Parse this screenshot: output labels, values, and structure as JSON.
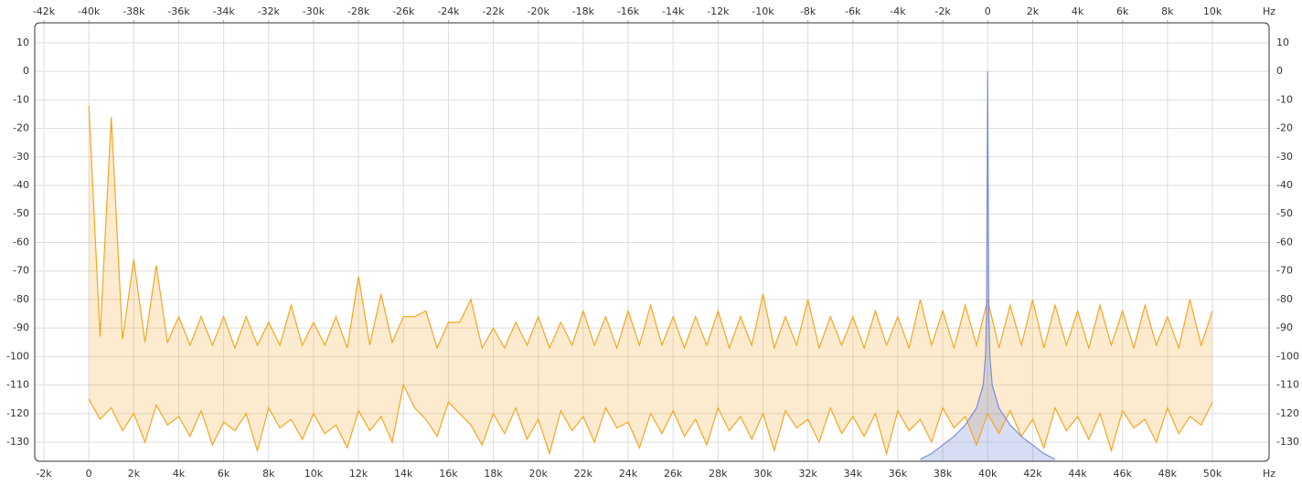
{
  "chart_data": {
    "type": "line",
    "x_label": "Hz",
    "x2_label": "Hz",
    "xlim": [
      -2407,
      52522
    ],
    "x2lim": [
      -42407,
      12522
    ],
    "ylim": [
      -136.7,
      17
    ],
    "grid": true,
    "xticks": [
      {
        "value": -2000,
        "label": "-2k"
      },
      {
        "value": 0,
        "label": "0"
      },
      {
        "value": 2000,
        "label": "2k"
      },
      {
        "value": 4000,
        "label": "4k"
      },
      {
        "value": 6000,
        "label": "6k"
      },
      {
        "value": 8000,
        "label": "8k"
      },
      {
        "value": 10000,
        "label": "10k"
      },
      {
        "value": 12000,
        "label": "12k"
      },
      {
        "value": 14000,
        "label": "14k"
      },
      {
        "value": 16000,
        "label": "16k"
      },
      {
        "value": 18000,
        "label": "18k"
      },
      {
        "value": 20000,
        "label": "20k"
      },
      {
        "value": 22000,
        "label": "22k"
      },
      {
        "value": 24000,
        "label": "24k"
      },
      {
        "value": 26000,
        "label": "26k"
      },
      {
        "value": 28000,
        "label": "28k"
      },
      {
        "value": 30000,
        "label": "30k"
      },
      {
        "value": 32000,
        "label": "32k"
      },
      {
        "value": 34000,
        "label": "34k"
      },
      {
        "value": 36000,
        "label": "36k"
      },
      {
        "value": 38000,
        "label": "38k"
      },
      {
        "value": 40000,
        "label": "40k"
      },
      {
        "value": 42000,
        "label": "42k"
      },
      {
        "value": 44000,
        "label": "44k"
      },
      {
        "value": 46000,
        "label": "46k"
      },
      {
        "value": 48000,
        "label": "48k"
      },
      {
        "value": 50000,
        "label": "50k"
      }
    ],
    "x2ticks": [
      {
        "value": -42000,
        "label": "-42k"
      },
      {
        "value": -40000,
        "label": "-40k"
      },
      {
        "value": -38000,
        "label": "-38k"
      },
      {
        "value": -36000,
        "label": "-36k"
      },
      {
        "value": -34000,
        "label": "-34k"
      },
      {
        "value": -32000,
        "label": "-32k"
      },
      {
        "value": -30000,
        "label": "-30k"
      },
      {
        "value": -28000,
        "label": "-28k"
      },
      {
        "value": -26000,
        "label": "-26k"
      },
      {
        "value": -24000,
        "label": "-24k"
      },
      {
        "value": -22000,
        "label": "-22k"
      },
      {
        "value": -20000,
        "label": "-20k"
      },
      {
        "value": -18000,
        "label": "-18k"
      },
      {
        "value": -16000,
        "label": "-16k"
      },
      {
        "value": -14000,
        "label": "-14k"
      },
      {
        "value": -12000,
        "label": "-12k"
      },
      {
        "value": -10000,
        "label": "-10k"
      },
      {
        "value": -8000,
        "label": "-8k"
      },
      {
        "value": -6000,
        "label": "-6k"
      },
      {
        "value": -4000,
        "label": "-4k"
      },
      {
        "value": -2000,
        "label": "-2k"
      },
      {
        "value": 0,
        "label": "0"
      },
      {
        "value": 2000,
        "label": "2k"
      },
      {
        "value": 4000,
        "label": "4k"
      },
      {
        "value": 6000,
        "label": "6k"
      },
      {
        "value": 8000,
        "label": "8k"
      },
      {
        "value": 10000,
        "label": "10k"
      }
    ],
    "yticks": [
      10,
      0,
      -10,
      -20,
      -30,
      -40,
      -50,
      -60,
      -70,
      -80,
      -90,
      -100,
      -110,
      -120,
      -130
    ],
    "x": [
      0,
      500,
      1000,
      1500,
      2000,
      2500,
      3000,
      3500,
      4000,
      4500,
      5000,
      5500,
      6000,
      6500,
      7000,
      7500,
      8000,
      8500,
      9000,
      9500,
      10000,
      10500,
      11000,
      11500,
      12000,
      12500,
      13000,
      13500,
      14000,
      14500,
      15000,
      15500,
      16000,
      16500,
      17000,
      17500,
      18000,
      18500,
      19000,
      19500,
      20000,
      20500,
      21000,
      21500,
      22000,
      22500,
      23000,
      23500,
      24000,
      24500,
      25000,
      25500,
      26000,
      26500,
      27000,
      27500,
      28000,
      28500,
      29000,
      29500,
      30000,
      30500,
      31000,
      31500,
      32000,
      32500,
      33000,
      33500,
      34000,
      34500,
      35000,
      35500,
      36000,
      36500,
      37000,
      37500,
      38000,
      38500,
      39000,
      39500,
      40000,
      40500,
      41000,
      41500,
      42000,
      42500,
      43000,
      43500,
      44000,
      44500,
      45000,
      45500,
      46000,
      46500,
      47000,
      47500,
      48000,
      48500,
      49000,
      49500,
      50000
    ],
    "series": [
      {
        "color": "#f5a623",
        "values": [
          -12,
          -93,
          -16,
          -94,
          -66,
          -95,
          -68,
          -95,
          -86,
          -96,
          -86,
          -96,
          -86,
          -97,
          -86,
          -96,
          -88,
          -96,
          -82,
          -96,
          -88,
          -96,
          -86,
          -97,
          -72,
          -96,
          -78,
          -95,
          -86,
          -86,
          -84,
          -97,
          -88,
          -88,
          -80,
          -97,
          -90,
          -97,
          -88,
          -96,
          -86,
          -97,
          -88,
          -96,
          -84,
          -96,
          -86,
          -97,
          -84,
          -96,
          -82,
          -96,
          -86,
          -97,
          -86,
          -96,
          -84,
          -97,
          -86,
          -96,
          -78,
          -97,
          -86,
          -96,
          -80,
          -97,
          -86,
          -96,
          -86,
          -97,
          -84,
          -96,
          -86,
          -97,
          -80,
          -96,
          -84,
          -97,
          -82,
          -96,
          -80,
          -97,
          -82,
          -96,
          -80,
          -97,
          -82,
          -96,
          -84,
          -97,
          -82,
          -96,
          -84,
          -97,
          -82,
          -96,
          -86,
          -97,
          -80,
          -96,
          -84
        ]
      },
      {
        "color": "#f5a623",
        "values": [
          -115,
          -122,
          -118,
          -126,
          -120,
          -130,
          -117,
          -124,
          -121,
          -128,
          -119,
          -131,
          -123,
          -126,
          -120,
          -133,
          -118,
          -125,
          -122,
          -129,
          -120,
          -127,
          -124,
          -132,
          -119,
          -126,
          -121,
          -130,
          -110,
          -118,
          -122,
          -128,
          -116,
          -120,
          -124,
          -131,
          -120,
          -127,
          -118,
          -129,
          -122,
          -134,
          -119,
          -126,
          -121,
          -130,
          -118,
          -125,
          -123,
          -132,
          -120,
          -127,
          -119,
          -128,
          -122,
          -131,
          -118,
          -126,
          -121,
          -129,
          -120,
          -133,
          -119,
          -125,
          -122,
          -130,
          -118,
          -127,
          -121,
          -128,
          -120,
          -134,
          -119,
          -126,
          -122,
          -130,
          -118,
          -125,
          -121,
          -131,
          -120,
          -127,
          -119,
          -128,
          -122,
          -132,
          -118,
          -126,
          -121,
          -129,
          -120,
          -133,
          -119,
          -125,
          -122,
          -130,
          -118,
          -127,
          -121,
          -124,
          -116
        ]
      },
      {
        "color": "#7b8fd8",
        "x": [
          37000,
          37500,
          38000,
          38500,
          39000,
          39500,
          39800,
          39900,
          39950,
          40000,
          40050,
          40100,
          40200,
          40500,
          41000,
          41500,
          42000,
          42500,
          43000
        ],
        "values": [
          -136,
          -134,
          -131,
          -128,
          -124,
          -118,
          -110,
          -100,
          -85,
          0,
          -85,
          -100,
          -110,
          -118,
          -124,
          -128,
          -131,
          -134,
          -136
        ]
      }
    ]
  }
}
